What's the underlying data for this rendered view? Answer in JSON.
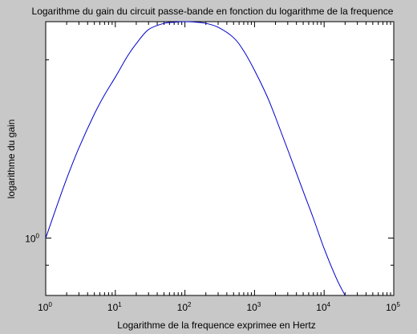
{
  "chart_data": {
    "type": "line",
    "title": "Logarithme du gain du circuit passe-bande en fonction du logarithme de la frequence",
    "xlabel": "Logarithme de la frequence exprimee en Hertz",
    "ylabel": "logarithme du gain",
    "xscale": "log",
    "yscale": "log",
    "xlim": [
      1,
      100000
    ],
    "ylim": [
      0.8,
      2.32
    ],
    "grid": false,
    "x_ticks": [
      {
        "base": "10",
        "exp": "0",
        "value": 1
      },
      {
        "base": "10",
        "exp": "1",
        "value": 10
      },
      {
        "base": "10",
        "exp": "2",
        "value": 100
      },
      {
        "base": "10",
        "exp": "3",
        "value": 1000
      },
      {
        "base": "10",
        "exp": "4",
        "value": 10000
      },
      {
        "base": "10",
        "exp": "5",
        "value": 100000
      }
    ],
    "y_ticks": [
      {
        "base": "10",
        "exp": "0",
        "value": 1
      }
    ],
    "series": [
      {
        "color": "#0000cc",
        "x": [
          1,
          1.5,
          2,
          3,
          5,
          7,
          10,
          15,
          20,
          30,
          50,
          70,
          100,
          150,
          200,
          300,
          500,
          700,
          1000,
          1500,
          2000,
          3000,
          5000,
          7000,
          10000,
          15000,
          20000
        ],
        "y": [
          1.0,
          1.147,
          1.26,
          1.42,
          1.62,
          1.745,
          1.87,
          2.03,
          2.13,
          2.25,
          2.305,
          2.315,
          2.32,
          2.315,
          2.305,
          2.27,
          2.18,
          2.07,
          1.92,
          1.74,
          1.6,
          1.41,
          1.2,
          1.08,
          0.96,
          0.855,
          0.8
        ]
      }
    ]
  }
}
